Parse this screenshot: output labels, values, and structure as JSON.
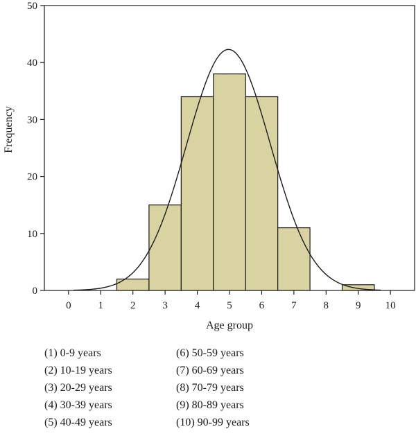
{
  "chart_data": {
    "type": "bar",
    "xlabel": "Age group",
    "ylabel": "Frequency",
    "xlim": [
      -0.75,
      10.75
    ],
    "ylim": [
      0,
      50
    ],
    "xticks": [
      "0",
      "1",
      "2",
      "3",
      "4",
      "5",
      "6",
      "7",
      "8",
      "9",
      "10"
    ],
    "yticks": [
      "0",
      "10",
      "20",
      "30",
      "40",
      "50"
    ],
    "bars": [
      {
        "x": 2,
        "value": 2
      },
      {
        "x": 3,
        "value": 15
      },
      {
        "x": 4,
        "value": 34
      },
      {
        "x": 5,
        "value": 38
      },
      {
        "x": 6,
        "value": 34
      },
      {
        "x": 7,
        "value": 11
      },
      {
        "x": 9,
        "value": 1
      }
    ],
    "bar_width": 1,
    "normal_curve": {
      "mean": 4.97,
      "sd": 1.3,
      "peak": 42.3,
      "x_range": [
        0.15,
        9.7
      ]
    },
    "colors": {
      "bar_fill": "#d9d3a1",
      "bar_stroke": "#1a1a1a",
      "curve": "#1a1a1a",
      "axis": "#1a1a1a"
    }
  },
  "legend": {
    "left": [
      "(1) 0-9 years",
      "(2) 10-19 years",
      "(3) 20-29 years",
      "(4) 30-39 years",
      "(5) 40-49 years"
    ],
    "right": [
      "(6) 50-59 years",
      "(7) 60-69 years",
      "(8) 70-79 years",
      "(9) 80-89 years",
      "(10) 90-99 years"
    ]
  }
}
